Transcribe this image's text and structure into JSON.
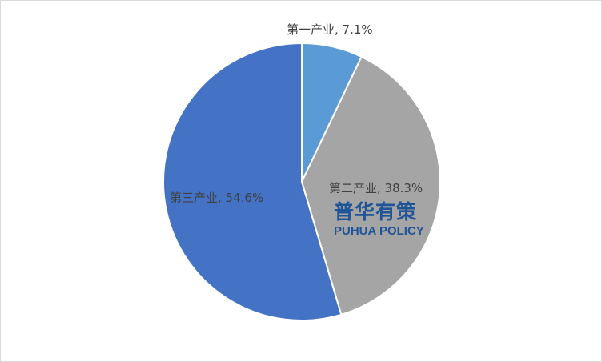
{
  "chart_data": {
    "type": "pie",
    "categories": [
      "第一产业",
      "第二产业",
      "第三产业"
    ],
    "values": [
      7.1,
      38.3,
      54.6
    ],
    "labels": [
      "第一产业, 7.1%",
      "第二产业, 38.3%",
      "第三产业, 54.6%"
    ],
    "colors": [
      "#5B9BD5",
      "#A5A5A5",
      "#4472C4"
    ],
    "start": "12 o'clock, clockwise"
  },
  "watermark": {
    "cn": "普华有策",
    "en": "PUHUA POLICY"
  }
}
